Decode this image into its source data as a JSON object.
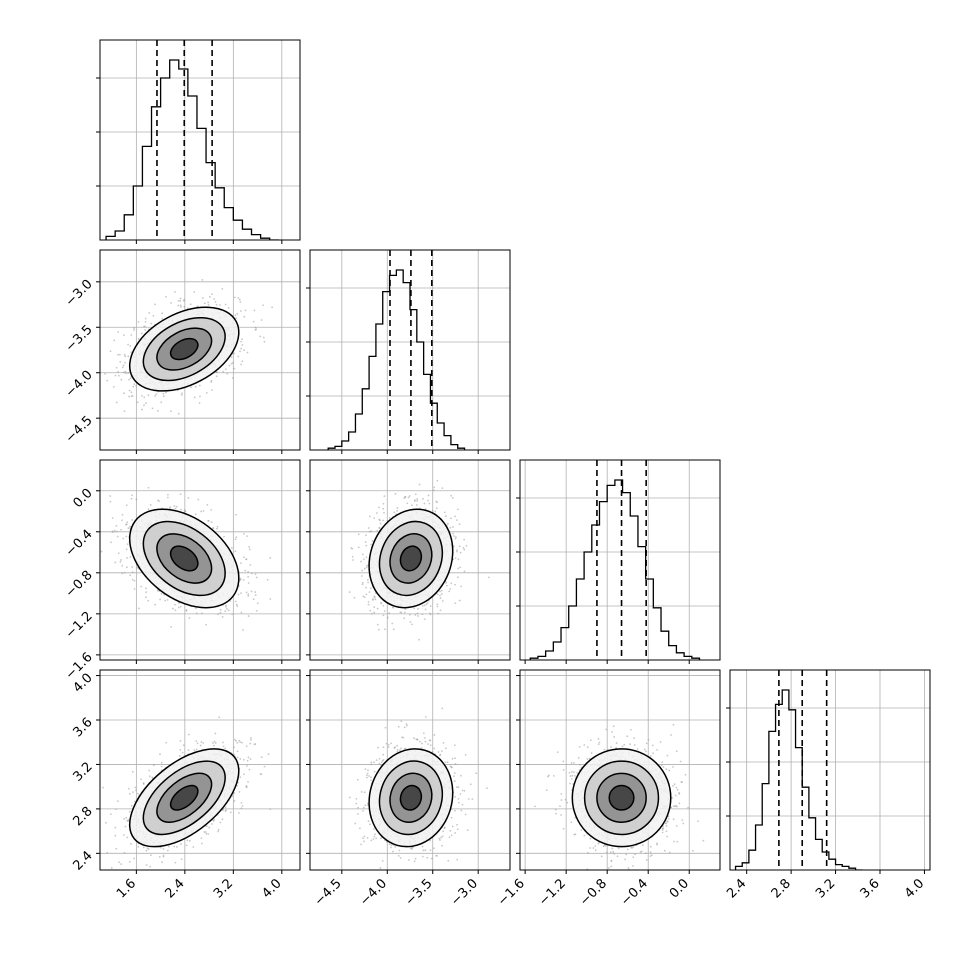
{
  "chart_data": {
    "type": "corner",
    "grid": true,
    "parameters": [
      {
        "index": 0,
        "range": [
          1.0,
          4.3
        ],
        "ticks": [
          "1.6",
          "2.4",
          "3.2",
          "4.0"
        ],
        "median": 2.39,
        "q16": 1.94,
        "q84": 2.85,
        "sd": 0.45
      },
      {
        "index": 1,
        "range": [
          -4.85,
          -2.65
        ],
        "ticks": [
          "-4.5",
          "-4.0",
          "-3.5",
          "-3.0"
        ],
        "median": -3.74,
        "q16": -3.97,
        "q84": -3.51,
        "sd": 0.23
      },
      {
        "index": 2,
        "range": [
          -1.65,
          0.3
        ],
        "ticks": [
          "-1.6",
          "-1.2",
          "-0.8",
          "-0.4",
          "0.0"
        ],
        "median": -0.66,
        "q16": -0.9,
        "q84": -0.42,
        "sd": 0.24
      },
      {
        "index": 3,
        "range": [
          2.25,
          4.05
        ],
        "ticks": [
          "2.4",
          "2.8",
          "3.2",
          "3.6",
          "4.0"
        ],
        "median": 2.9,
        "q16": 2.69,
        "q84": 3.12,
        "sd": 0.22
      }
    ],
    "correlations": [
      {
        "pair": [
          0,
          1
        ],
        "rho": 0.4
      },
      {
        "pair": [
          0,
          2
        ],
        "rho": -0.4
      },
      {
        "pair": [
          0,
          3
        ],
        "rho": 0.55
      },
      {
        "pair": [
          1,
          2
        ],
        "rho": 0.15
      },
      {
        "pair": [
          1,
          3
        ],
        "rho": 0.1
      },
      {
        "pair": [
          2,
          3
        ],
        "rho": 0.0
      }
    ],
    "histograms": [
      {
        "param": 0,
        "edges_start": 1.1,
        "bin_width": 0.15,
        "counts": [
          2,
          5,
          14,
          30,
          52,
          74,
          90,
          100,
          95,
          80,
          62,
          43,
          29,
          18,
          11,
          6,
          3,
          1,
          0
        ]
      },
      {
        "param": 1,
        "edges_start": -4.65,
        "bin_width": 0.075,
        "counts": [
          1,
          2,
          5,
          10,
          20,
          34,
          52,
          70,
          88,
          97,
          100,
          93,
          78,
          60,
          42,
          26,
          15,
          8,
          3,
          1
        ]
      },
      {
        "param": 2,
        "edges_start": -1.55,
        "bin_width": 0.075,
        "counts": [
          1,
          2,
          5,
          10,
          18,
          30,
          45,
          60,
          75,
          88,
          97,
          100,
          93,
          80,
          63,
          45,
          29,
          16,
          8,
          4,
          2,
          1
        ]
      },
      {
        "param": 3,
        "edges_start": 2.3,
        "bin_width": 0.06,
        "counts": [
          2,
          4,
          11,
          25,
          48,
          77,
          92,
          100,
          89,
          68,
          46,
          29,
          17,
          10,
          6,
          3,
          2,
          1,
          0
        ]
      }
    ],
    "contour_levels_sigma": [
      0.5,
      1.0,
      1.5,
      2.0
    ],
    "scatter_color": "#9a9a9a",
    "line_color": "#000000"
  }
}
